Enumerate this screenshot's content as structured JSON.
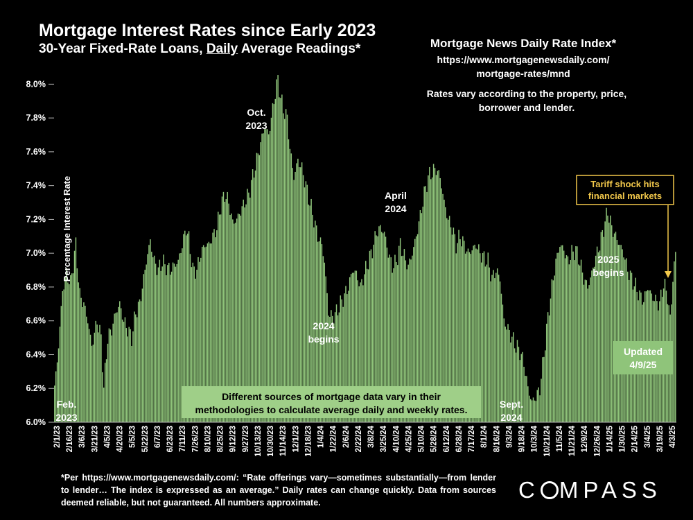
{
  "title": "Mortgage Interest Rates since Early 2023",
  "subtitle_pre": "30-Year Fixed-Rate Loans, ",
  "subtitle_underlined": "Daily",
  "subtitle_post": " Average Readings*",
  "source": {
    "title": "Mortgage News Daily Rate Index*",
    "url_line1": "https://www.mortgagenewsdaily.com/",
    "url_line2": "mortgage-rates/mnd",
    "note": "Rates vary according to the property, price, borrower and lender."
  },
  "footnote": "*Per https://www.mortgagenewsdaily.com/: “Rate offerings vary—sometimes substantially—from lender to lender… The index is expressed as an average.” Daily rates can change quickly. Data from sources deemed reliable, but not guaranteed. All numbers approximate.",
  "logo": {
    "pre": "C",
    "post": "MPASS"
  },
  "colors": {
    "bar": "#8fc47a",
    "bar_dark": "#5e9a4a",
    "background": "#000000",
    "tariff_accent": "#f2c84b",
    "banner_bg": "#9fcf88"
  },
  "chart_data": {
    "type": "bar",
    "title": "Mortgage Interest Rates since Early 2023",
    "ylabel": "Percentage Interest Rate",
    "xlabel": "",
    "ylim": [
      6.0,
      8.1
    ],
    "yticks": [
      "8.0%",
      "7.8%",
      "7.6%",
      "7.4%",
      "7.2%",
      "7.0%",
      "6.8%",
      "6.6%",
      "6.4%",
      "6.2%",
      "6.0%"
    ],
    "xtick_labels": [
      "2/1/23",
      "2/16/23",
      "3/6/23",
      "3/21/23",
      "4/5/23",
      "4/20/23",
      "5/5/23",
      "5/22/23",
      "6/7/23",
      "6/23/23",
      "7/11/23",
      "7/26/23",
      "8/10/23",
      "8/25/23",
      "9/12/23",
      "9/27/23",
      "10/13/23",
      "10/30/23",
      "11/14/23",
      "12/1/23",
      "12/18/23",
      "1/4/24",
      "1/22/24",
      "2/6/24",
      "2/22/24",
      "3/8/24",
      "3/25/24",
      "4/10/24",
      "4/25/24",
      "5/10/24",
      "5/28/24",
      "6/12/24",
      "6/28/24",
      "7/17/24",
      "8/1/24",
      "8/16/24",
      "9/3/24",
      "9/18/24",
      "10/3/24",
      "10/21/24",
      "11/5/24",
      "11/21/24",
      "12/9/24",
      "12/26/24",
      "1/14/25",
      "1/30/25",
      "2/14/25",
      "3/4/25",
      "3/19/25",
      "4/3/25"
    ],
    "anchors": [
      [
        0,
        6.2
      ],
      [
        3,
        6.45
      ],
      [
        6,
        6.78
      ],
      [
        9,
        6.88
      ],
      [
        12,
        6.82
      ],
      [
        16,
        7.05
      ],
      [
        19,
        6.75
      ],
      [
        22,
        6.7
      ],
      [
        25,
        6.6
      ],
      [
        28,
        6.45
      ],
      [
        32,
        6.6
      ],
      [
        35,
        6.5
      ],
      [
        37,
        6.2
      ],
      [
        40,
        6.5
      ],
      [
        43,
        6.55
      ],
      [
        46,
        6.65
      ],
      [
        49,
        6.7
      ],
      [
        52,
        6.6
      ],
      [
        55,
        6.55
      ],
      [
        58,
        6.5
      ],
      [
        61,
        6.65
      ],
      [
        64,
        6.7
      ],
      [
        67,
        6.85
      ],
      [
        70,
        7.0
      ],
      [
        72,
        7.07
      ],
      [
        75,
        6.95
      ],
      [
        78,
        6.9
      ],
      [
        81,
        6.95
      ],
      [
        84,
        6.92
      ],
      [
        87,
        6.9
      ],
      [
        90,
        6.93
      ],
      [
        93,
        6.95
      ],
      [
        96,
        7.05
      ],
      [
        99,
        7.15
      ],
      [
        101,
        7.08
      ],
      [
        104,
        6.9
      ],
      [
        107,
        6.9
      ],
      [
        110,
        7.0
      ],
      [
        113,
        7.05
      ],
      [
        116,
        7.05
      ],
      [
        119,
        7.1
      ],
      [
        122,
        7.15
      ],
      [
        125,
        7.28
      ],
      [
        128,
        7.35
      ],
      [
        131,
        7.3
      ],
      [
        134,
        7.18
      ],
      [
        137,
        7.2
      ],
      [
        140,
        7.25
      ],
      [
        143,
        7.3
      ],
      [
        146,
        7.35
      ],
      [
        149,
        7.45
      ],
      [
        152,
        7.55
      ],
      [
        155,
        7.65
      ],
      [
        158,
        7.75
      ],
      [
        161,
        7.7
      ],
      [
        164,
        7.85
      ],
      [
        166,
        7.95
      ],
      [
        168,
        8.03
      ],
      [
        170,
        7.92
      ],
      [
        172,
        7.85
      ],
      [
        175,
        7.8
      ],
      [
        177,
        7.62
      ],
      [
        180,
        7.45
      ],
      [
        183,
        7.55
      ],
      [
        186,
        7.5
      ],
      [
        189,
        7.4
      ],
      [
        192,
        7.3
      ],
      [
        195,
        7.2
      ],
      [
        198,
        7.1
      ],
      [
        201,
        7.05
      ],
      [
        203,
        6.95
      ],
      [
        206,
        6.65
      ],
      [
        209,
        6.62
      ],
      [
        212,
        6.65
      ],
      [
        215,
        6.7
      ],
      [
        218,
        6.75
      ],
      [
        221,
        6.8
      ],
      [
        224,
        6.9
      ],
      [
        227,
        6.88
      ],
      [
        230,
        6.8
      ],
      [
        233,
        6.88
      ],
      [
        236,
        6.95
      ],
      [
        239,
        7.02
      ],
      [
        242,
        7.12
      ],
      [
        245,
        7.15
      ],
      [
        248,
        7.12
      ],
      [
        251,
        7.0
      ],
      [
        254,
        6.92
      ],
      [
        257,
        6.95
      ],
      [
        260,
        7.05
      ],
      [
        263,
        6.98
      ],
      [
        266,
        6.92
      ],
      [
        269,
        7.0
      ],
      [
        272,
        7.1
      ],
      [
        275,
        7.22
      ],
      [
        278,
        7.35
      ],
      [
        281,
        7.45
      ],
      [
        284,
        7.48
      ],
      [
        287,
        7.5
      ],
      [
        290,
        7.45
      ],
      [
        293,
        7.3
      ],
      [
        296,
        7.2
      ],
      [
        299,
        7.15
      ],
      [
        302,
        7.05
      ],
      [
        305,
        7.1
      ],
      [
        308,
        7.05
      ],
      [
        311,
        7.0
      ],
      [
        314,
        7.02
      ],
      [
        317,
        7.05
      ],
      [
        320,
        7.0
      ],
      [
        323,
        6.97
      ],
      [
        326,
        6.95
      ],
      [
        329,
        6.85
      ],
      [
        332,
        6.9
      ],
      [
        335,
        6.85
      ],
      [
        338,
        6.6
      ],
      [
        341,
        6.55
      ],
      [
        344,
        6.5
      ],
      [
        347,
        6.45
      ],
      [
        350,
        6.42
      ],
      [
        353,
        6.35
      ],
      [
        356,
        6.2
      ],
      [
        359,
        6.12
      ],
      [
        362,
        6.15
      ],
      [
        365,
        6.2
      ],
      [
        368,
        6.4
      ],
      [
        371,
        6.62
      ],
      [
        374,
        6.8
      ],
      [
        377,
        6.95
      ],
      [
        380,
        7.05
      ],
      [
        383,
        7.02
      ],
      [
        386,
        6.95
      ],
      [
        389,
        7.0
      ],
      [
        392,
        7.02
      ],
      [
        395,
        6.95
      ],
      [
        398,
        6.85
      ],
      [
        401,
        6.8
      ],
      [
        404,
        6.88
      ],
      [
        407,
        6.98
      ],
      [
        410,
        7.05
      ],
      [
        413,
        7.15
      ],
      [
        416,
        7.25
      ],
      [
        419,
        7.15
      ],
      [
        422,
        7.1
      ],
      [
        425,
        7.05
      ],
      [
        428,
        7.0
      ],
      [
        431,
        6.9
      ],
      [
        434,
        6.85
      ],
      [
        437,
        6.8
      ],
      [
        440,
        6.75
      ],
      [
        443,
        6.72
      ],
      [
        446,
        6.8
      ],
      [
        449,
        6.75
      ],
      [
        452,
        6.72
      ],
      [
        455,
        6.7
      ],
      [
        458,
        6.82
      ],
      [
        461,
        6.75
      ],
      [
        463,
        6.6
      ],
      [
        465,
        6.85
      ],
      [
        467,
        7.0
      ]
    ],
    "points": 468,
    "annotations": [
      {
        "id": "feb2023",
        "line1": "Feb.",
        "line2": "2023"
      },
      {
        "id": "oct2023",
        "line1": "Oct.",
        "line2": "2023"
      },
      {
        "id": "begins2024",
        "line1": "2024",
        "line2": "begins"
      },
      {
        "id": "apr2024",
        "line1": "April",
        "line2": "2024"
      },
      {
        "id": "sep2024",
        "line1": "Sept.",
        "line2": "2024"
      },
      {
        "id": "begins2025",
        "line1": "2025",
        "line2": "begins"
      },
      {
        "id": "updated",
        "line1": "Updated",
        "line2": "4/9/25"
      }
    ],
    "tariff": {
      "line1": "Tariff shock hits",
      "line2": "financial markets"
    },
    "banner": {
      "line1": "Different sources of mortgage data vary in their",
      "line2": "methodologies to calculate average daily and weekly rates."
    }
  }
}
